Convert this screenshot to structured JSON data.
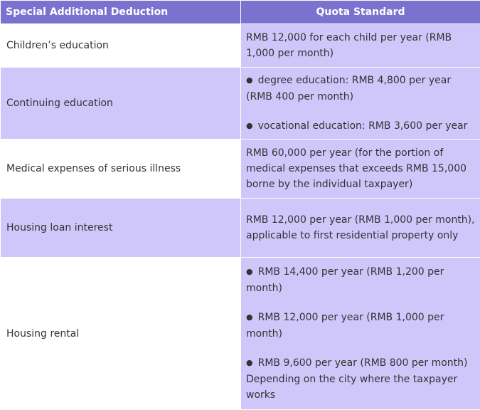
{
  "table": {
    "headers": {
      "deduction": "Special Additional Deduction",
      "quota": "Quota Standard"
    },
    "rows": [
      {
        "deduction": "Children’s education",
        "quota": [
          "RMB 12,000 for each child per year (RMB 1,000 per month)"
        ]
      },
      {
        "deduction": "Continuing education",
        "quota": [
          "degree education: RMB 4,800 per year (RMB 400 per month)",
          "vocational education: RMB 3,600 per year"
        ]
      },
      {
        "deduction": "Medical expenses of serious illness",
        "quota": [
          "RMB 60,000 per year (for the portion of medical expenses that exceeds RMB 15,000 borne by the individual taxpayer)"
        ]
      },
      {
        "deduction": "Housing loan interest",
        "quota": [
          "RMB 12,000 per year (RMB 1,000 per month), applicable to first residential property only"
        ]
      },
      {
        "deduction": "Housing rental",
        "quota": [
          "RMB 14,400 per year (RMB 1,200 per month)",
          "RMB 12,000 per year (RMB 1,000 per month)",
          "RMB 9,600 per year (RMB 800 per month)",
          "Depending on the city where the taxpayer works"
        ]
      }
    ]
  }
}
